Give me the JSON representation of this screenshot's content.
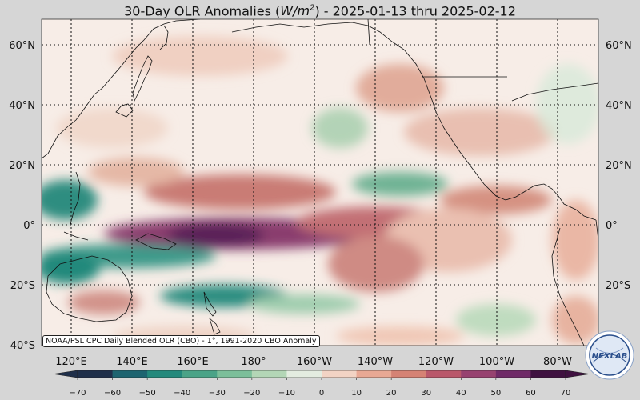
{
  "title": {
    "prefix": "30-Day OLR Anomalies (",
    "unit_base": "W/m",
    "unit_exp": "2",
    "suffix": ") - 2025-01-13 thru 2025-02-12"
  },
  "credit": "NOAA/PSL CPC Daily Blended OLR (CBO) - 1°, 1991-2020 CBO Anomaly",
  "logo_text": "NEXLAB",
  "lat_labels": [
    "60°N",
    "40°N",
    "20°N",
    "0°",
    "20°S",
    "40°S"
  ],
  "lon_labels": [
    "120°E",
    "140°E",
    "160°E",
    "180°",
    "160°W",
    "140°W",
    "120°W",
    "100°W",
    "80°W"
  ],
  "colorbar": {
    "ticks": [
      "−70",
      "−60",
      "−50",
      "−40",
      "−30",
      "−20",
      "−10",
      "0",
      "10",
      "20",
      "30",
      "40",
      "50",
      "60",
      "70"
    ],
    "colors": [
      "#1f2f4a",
      "#1d6470",
      "#23897c",
      "#4aa387",
      "#7cbf9a",
      "#b3d6b6",
      "#e3ece0",
      "#fbf3ef",
      "#f2d3c4",
      "#e8a894",
      "#d58274",
      "#b9586b",
      "#974270",
      "#6f2a67",
      "#3f1140"
    ]
  }
}
